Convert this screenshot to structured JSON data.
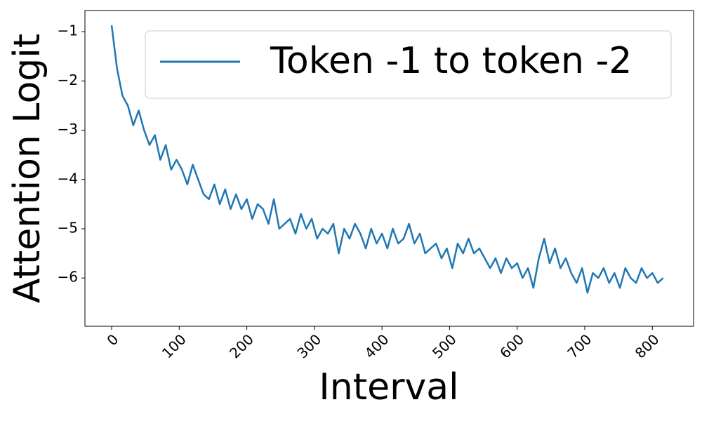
{
  "chart_data": {
    "type": "line",
    "x_label": "Interval",
    "y_label": "Attention Logit",
    "x": [
      0,
      8,
      16,
      24,
      32,
      40,
      48,
      56,
      64,
      72,
      80,
      88,
      96,
      104,
      112,
      120,
      128,
      136,
      144,
      152,
      160,
      168,
      176,
      184,
      192,
      200,
      208,
      216,
      224,
      232,
      240,
      248,
      256,
      264,
      272,
      280,
      288,
      296,
      304,
      312,
      320,
      328,
      336,
      344,
      352,
      360,
      368,
      376,
      384,
      392,
      400,
      408,
      416,
      424,
      432,
      440,
      448,
      456,
      464,
      472,
      480,
      488,
      496,
      504,
      512,
      520,
      528,
      536,
      544,
      552,
      560,
      568,
      576,
      584,
      592,
      600,
      608,
      616,
      624,
      632,
      640,
      648,
      656,
      664,
      672,
      680,
      688,
      696,
      704,
      712,
      720,
      728,
      736,
      744,
      752,
      760,
      768,
      776,
      784,
      792,
      800,
      808,
      816
    ],
    "series": [
      {
        "name": "Token -1 to token -2",
        "color": "#1f77b4",
        "values": [
          -0.87,
          -1.75,
          -2.3,
          -2.5,
          -2.9,
          -2.6,
          -3.0,
          -3.3,
          -3.1,
          -3.6,
          -3.3,
          -3.8,
          -3.6,
          -3.8,
          -4.1,
          -3.7,
          -4.0,
          -4.3,
          -4.4,
          -4.1,
          -4.5,
          -4.2,
          -4.6,
          -4.3,
          -4.6,
          -4.4,
          -4.8,
          -4.5,
          -4.6,
          -4.9,
          -4.4,
          -5.0,
          -4.9,
          -4.8,
          -5.1,
          -4.7,
          -5.0,
          -4.8,
          -5.2,
          -5.0,
          -5.1,
          -4.9,
          -5.5,
          -5.0,
          -5.2,
          -4.9,
          -5.1,
          -5.4,
          -5.0,
          -5.3,
          -5.1,
          -5.4,
          -5.0,
          -5.3,
          -5.2,
          -4.9,
          -5.3,
          -5.1,
          -5.5,
          -5.4,
          -5.3,
          -5.6,
          -5.4,
          -5.8,
          -5.3,
          -5.5,
          -5.2,
          -5.5,
          -5.4,
          -5.6,
          -5.8,
          -5.6,
          -5.9,
          -5.6,
          -5.8,
          -5.7,
          -6.0,
          -5.8,
          -6.2,
          -5.6,
          -5.2,
          -5.7,
          -5.4,
          -5.8,
          -5.6,
          -5.9,
          -6.1,
          -5.8,
          -6.3,
          -5.9,
          -6.0,
          -5.8,
          -6.1,
          -5.9,
          -6.2,
          -5.8,
          -6.0,
          -6.1,
          -5.8,
          -6.0,
          -5.9,
          -6.1,
          -6.0
        ]
      }
    ],
    "xlim": [
      -39.5,
      861
    ],
    "ylim": [
      -6.98,
      -0.57
    ],
    "xticks": [
      0,
      100,
      200,
      300,
      400,
      500,
      600,
      700,
      800
    ],
    "yticks": [
      {
        "value": -1,
        "label": "−1"
      },
      {
        "value": -2,
        "label": "−2"
      },
      {
        "value": -3,
        "label": "−3"
      },
      {
        "value": -4,
        "label": "−4"
      },
      {
        "value": -5,
        "label": "−5"
      },
      {
        "value": -6,
        "label": "−6"
      }
    ],
    "legend": "upper right",
    "grid": false
  }
}
